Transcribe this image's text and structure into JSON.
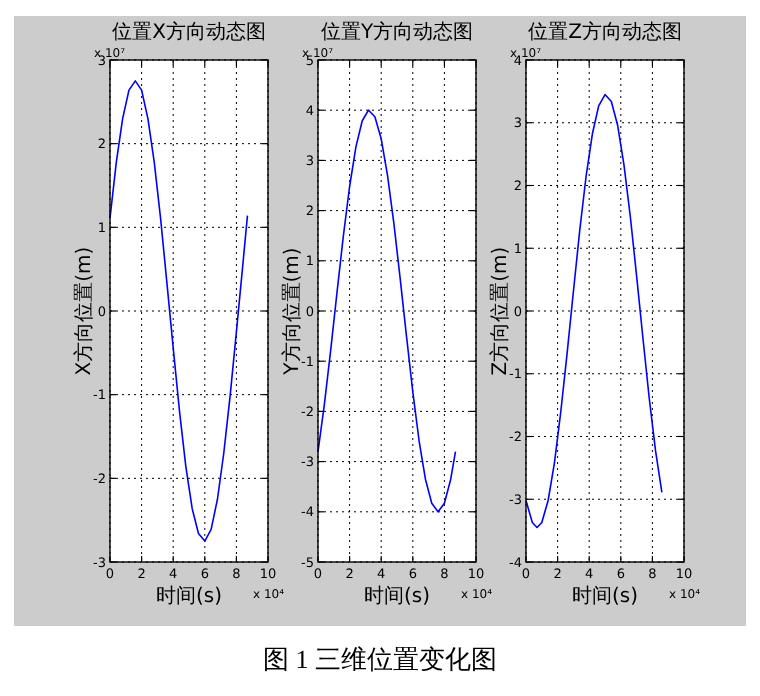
{
  "chart_data": [
    {
      "type": "line",
      "title": "位置X方向动态图",
      "xlabel": "时间(s)",
      "ylabel": "X方向位置(m)",
      "annotations": [
        "x 10⁷",
        "x 10⁴",
        "图 1  三维位置变化图"
      ],
      "xlim": [
        0,
        10
      ],
      "xticks": [
        0,
        2,
        4,
        6,
        8,
        10
      ],
      "ylim": [
        -3,
        3
      ],
      "yticks": [
        -3,
        -2,
        -1,
        0,
        1,
        2,
        3
      ],
      "grid": true,
      "color": "#0000ff",
      "x": [
        0,
        0.4,
        0.8,
        1.2,
        1.6,
        2.0,
        2.4,
        2.8,
        3.2,
        3.6,
        4.0,
        4.4,
        4.8,
        5.2,
        5.6,
        6.0,
        6.4,
        6.8,
        7.2,
        7.6,
        8.0,
        8.4,
        8.7
      ],
      "values": [
        1.11,
        1.78,
        2.3,
        2.64,
        2.75,
        2.64,
        2.3,
        1.78,
        1.11,
        0.34,
        -0.44,
        -1.2,
        -1.86,
        -2.36,
        -2.66,
        -2.75,
        -2.61,
        -2.25,
        -1.7,
        -1.02,
        -0.25,
        0.54,
        1.14
      ]
    },
    {
      "type": "line",
      "title": "位置Y方向动态图",
      "xlabel": "时间(s)",
      "ylabel": "Y方向位置(m)",
      "annotations": [
        "x 10⁷",
        "x 10⁴"
      ],
      "xlim": [
        0,
        10
      ],
      "xticks": [
        0,
        2,
        4,
        6,
        8,
        10
      ],
      "ylim": [
        -5,
        5
      ],
      "yticks": [
        -5,
        -4,
        -3,
        -2,
        -1,
        0,
        1,
        2,
        3,
        4,
        5
      ],
      "grid": true,
      "color": "#0000ff",
      "x": [
        0,
        0.4,
        0.8,
        1.2,
        1.6,
        2.0,
        2.4,
        2.8,
        3.2,
        3.6,
        4.0,
        4.4,
        4.8,
        5.2,
        5.6,
        6.0,
        6.4,
        6.8,
        7.2,
        7.6,
        8.0,
        8.4,
        8.7
      ],
      "values": [
        -2.8,
        -1.87,
        -0.79,
        0.36,
        1.48,
        2.48,
        3.27,
        3.79,
        4.0,
        3.87,
        3.43,
        2.7,
        1.75,
        0.65,
        -0.5,
        -1.61,
        -2.59,
        -3.35,
        -3.83,
        -4.0,
        -3.83,
        -3.35,
        -2.8
      ]
    },
    {
      "type": "line",
      "title": "位置Z方向动态图",
      "xlabel": "时间(s)",
      "ylabel": "Z方向位置(m)",
      "annotations": [
        "x 10⁷",
        "x 10⁴"
      ],
      "xlim": [
        0,
        10
      ],
      "xticks": [
        0,
        2,
        4,
        6,
        8,
        10
      ],
      "ylim": [
        -4,
        4
      ],
      "yticks": [
        -4,
        -3,
        -2,
        -1,
        0,
        1,
        2,
        3,
        4
      ],
      "grid": true,
      "color": "#0000ff",
      "x": [
        0,
        0.4,
        0.7,
        1.0,
        1.4,
        1.8,
        2.2,
        2.6,
        3.0,
        3.4,
        3.8,
        4.2,
        4.6,
        5.0,
        5.4,
        5.8,
        6.2,
        6.6,
        7.0,
        7.4,
        7.8,
        8.2,
        8.6
      ],
      "values": [
        -3.02,
        -3.37,
        -3.45,
        -3.37,
        -3.02,
        -2.42,
        -1.61,
        -0.68,
        0.31,
        1.28,
        2.14,
        2.82,
        3.27,
        3.45,
        3.34,
        2.96,
        2.33,
        1.51,
        0.56,
        -0.43,
        -1.39,
        -2.23,
        -2.89
      ]
    }
  ]
}
